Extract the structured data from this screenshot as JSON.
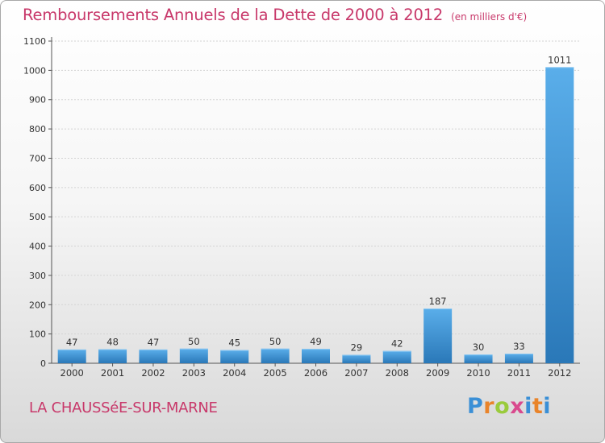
{
  "title": "Remboursements Annuels de la Dette de 2000 à 2012",
  "unit": "(en milliers d'€)",
  "city": "LA CHAUSSéE-SUR-MARNE",
  "logo": "Proxiti",
  "colors": {
    "accent": "#c8386a",
    "bar_top": "#5aaeea",
    "bar_bottom": "#2a78b8"
  },
  "chart_data": {
    "type": "bar",
    "categories": [
      "2000",
      "2001",
      "2002",
      "2003",
      "2004",
      "2005",
      "2006",
      "2007",
      "2008",
      "2009",
      "2010",
      "2011",
      "2012"
    ],
    "values": [
      47,
      48,
      47,
      50,
      45,
      50,
      49,
      29,
      42,
      187,
      30,
      33,
      1011
    ],
    "ylim": [
      0,
      1100
    ],
    "yticks": [
      0,
      100,
      200,
      300,
      400,
      500,
      600,
      700,
      800,
      900,
      1000,
      1100
    ],
    "grid": true,
    "legend": "none"
  }
}
